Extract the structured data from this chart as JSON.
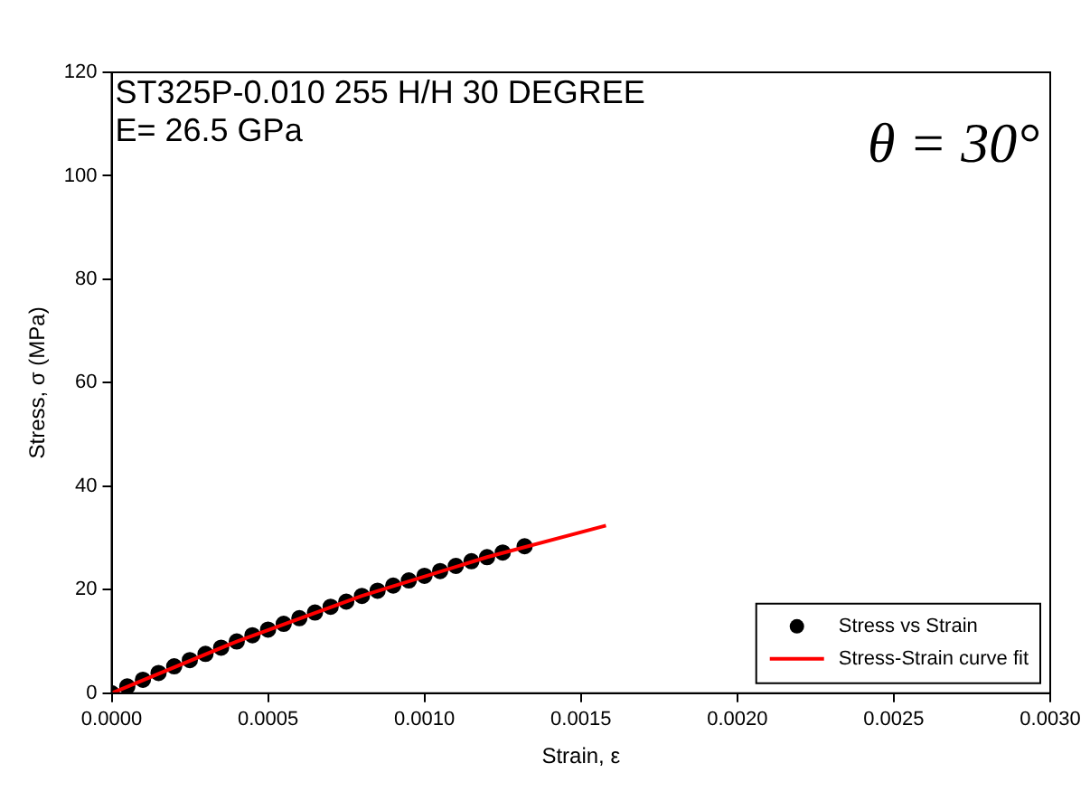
{
  "chart_data": {
    "type": "scatter",
    "xlabel": "Strain, ε",
    "ylabel": "Stress, σ (MPa)",
    "annotations": [
      "ST325P-0.010 255 H/H 30 DEGREE",
      "E= 26.5 GPa",
      "θ = 30°"
    ],
    "xlim": [
      0,
      0.003
    ],
    "xticks": [
      {
        "value": 0,
        "label": "0.0000"
      },
      {
        "value": 0.0005,
        "label": "0.0005"
      },
      {
        "value": 0.001,
        "label": "0.0010"
      },
      {
        "value": 0.0015,
        "label": "0.0015"
      },
      {
        "value": 0.002,
        "label": "0.0020"
      },
      {
        "value": 0.0025,
        "label": "0.0025"
      },
      {
        "value": 0.003,
        "label": "0.0030"
      }
    ],
    "ylim": [
      0,
      120
    ],
    "yticks": [
      0,
      20,
      40,
      60,
      80,
      100,
      120
    ],
    "grid": false,
    "legend": "bottom right",
    "series": [
      {
        "name": "Stress vs Strain",
        "marker": "circle",
        "color": "#000000",
        "x": [
          0,
          5e-05,
          0.0001,
          0.00015,
          0.0002,
          0.00025,
          0.0003,
          0.00035,
          0.0004,
          0.00045,
          0.0005,
          0.00055,
          0.0006,
          0.00065,
          0.0007,
          0.00075,
          0.0008,
          0.00085,
          0.0009,
          0.00095,
          0.001,
          0.00105,
          0.0011,
          0.00115,
          0.0012,
          0.00125,
          0.00132
        ],
        "values": [
          0,
          1.3,
          2.6,
          3.9,
          5.2,
          6.4,
          7.6,
          8.8,
          10,
          11.2,
          12.3,
          13.4,
          14.5,
          15.6,
          16.7,
          17.7,
          18.8,
          19.8,
          20.8,
          21.8,
          22.7,
          23.6,
          24.6,
          25.5,
          26.3,
          27.2,
          28.4
        ]
      },
      {
        "name": "Stress-Strain curve fit",
        "type": "line",
        "marker": "none",
        "color": "#ff0000",
        "x": [
          0,
          0.0004,
          0.0008,
          0.0012,
          0.00158
        ],
        "values": [
          0,
          10,
          18.8,
          26.3,
          32.4
        ]
      }
    ]
  }
}
